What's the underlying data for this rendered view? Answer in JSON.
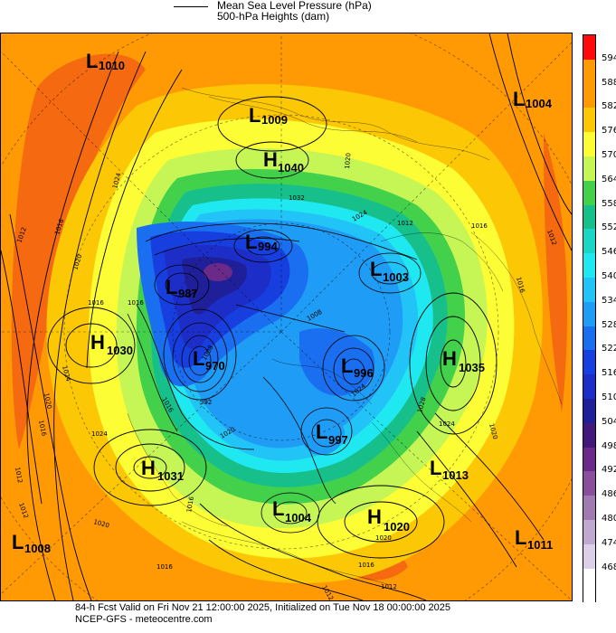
{
  "legend": {
    "items": [
      {
        "label": "Mean Sea Level Pressure (hPa)"
      },
      {
        "label": "500-hPa Heights (dam)"
      }
    ]
  },
  "colorbar": {
    "levels": [
      "594",
      "588",
      "582",
      "576",
      "570",
      "564",
      "558",
      "552",
      "546",
      "540",
      "534",
      "528",
      "522",
      "516",
      "510",
      "504",
      "498",
      "492",
      "486",
      "480",
      "474",
      "468"
    ],
    "colors": [
      "#ff0a0a",
      "#ff9a05",
      "#ff9a05",
      "#fcc805",
      "#fdfd36",
      "#c6f556",
      "#43d14b",
      "#17c08b",
      "#19d6c5",
      "#1fe8f0",
      "#22c4f7",
      "#1f9cf5",
      "#1a6ff0",
      "#173fe0",
      "#1d2ec8",
      "#1f1f9a",
      "#42197a",
      "#6b2a8a",
      "#8a4f9a",
      "#a07ab0",
      "#c0a8d0",
      "#dcd0e8"
    ]
  },
  "systems": [
    {
      "type": "L",
      "value": "1010"
    },
    {
      "type": "L",
      "value": "1009"
    },
    {
      "type": "H",
      "value": "1040"
    },
    {
      "type": "L",
      "value": "1004"
    },
    {
      "type": "L",
      "value": "994"
    },
    {
      "type": "L",
      "value": "1003"
    },
    {
      "type": "L",
      "value": "987"
    },
    {
      "type": "H",
      "value": "1030"
    },
    {
      "type": "L",
      "value": "970"
    },
    {
      "type": "L",
      "value": "996"
    },
    {
      "type": "H",
      "value": "1035"
    },
    {
      "type": "L",
      "value": "997"
    },
    {
      "type": "H",
      "value": "1031"
    },
    {
      "type": "L",
      "value": "1013"
    },
    {
      "type": "L",
      "value": "1004"
    },
    {
      "type": "H",
      "value": "1020"
    },
    {
      "type": "L",
      "value": "1008"
    },
    {
      "type": "L",
      "value": "1011"
    }
  ],
  "isobar_labels": [
    "1024",
    "1012",
    "1016",
    "1020",
    "1024",
    "1016",
    "1020",
    "1012",
    "1016",
    "1032",
    "1024",
    "1012",
    "1020",
    "1016",
    "1012",
    "1024",
    "1028",
    "1020",
    "1016",
    "1024",
    "1020",
    "1016",
    "1012",
    "1008",
    "1016",
    "1020",
    "1024",
    "1008",
    "992",
    "1016",
    "1016",
    "1012",
    "1012",
    "1016",
    "1020"
  ],
  "footer": {
    "line1": "84-h Fcst Valid on Fri Nov 21 12:00:00 2025, Initialized on Tue Nov 18 00:00:00 2025",
    "line2": "NCEP-GFS - meteocentre.com"
  }
}
